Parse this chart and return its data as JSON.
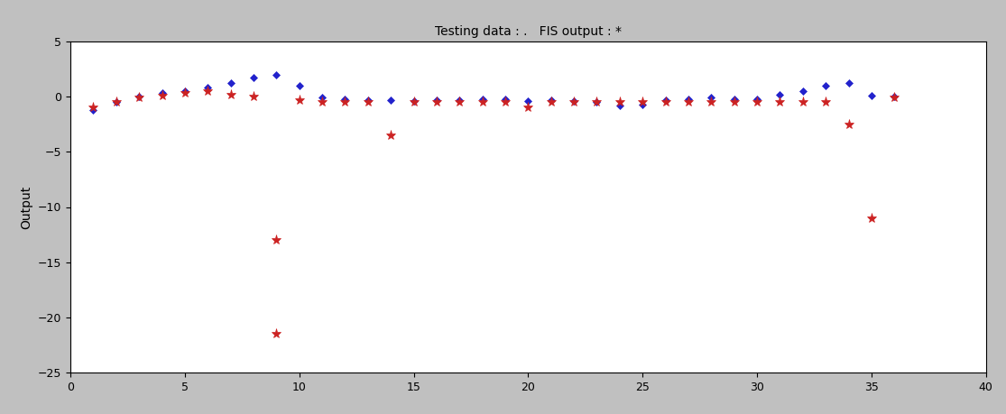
{
  "title": "Testing data : .   FIS output : *",
  "ylabel": "Output",
  "xlim": [
    0,
    40
  ],
  "ylim": [
    -25,
    5
  ],
  "yticks": [
    -25,
    -20,
    -15,
    -10,
    -5,
    0,
    5
  ],
  "xticks": [
    0,
    5,
    10,
    15,
    20,
    25,
    30,
    35,
    40
  ],
  "bg_color": "#c0c0c0",
  "plot_bg_color": "#ffffff",
  "blue_dot_color": "#2222cc",
  "red_star_color": "#cc2222",
  "blue_x": [
    1,
    2,
    3,
    4,
    5,
    6,
    7,
    8,
    9,
    10,
    11,
    12,
    13,
    14,
    15,
    16,
    17,
    18,
    19,
    20,
    21,
    22,
    23,
    24,
    25,
    26,
    27,
    28,
    29,
    30,
    31,
    32,
    33,
    34,
    35,
    36
  ],
  "blue_y": [
    -1.2,
    -0.5,
    0.0,
    0.3,
    0.5,
    0.8,
    1.2,
    1.7,
    2.0,
    1.0,
    -0.1,
    -0.2,
    -0.3,
    -0.3,
    -0.4,
    -0.3,
    -0.3,
    -0.2,
    -0.2,
    -0.4,
    -0.3,
    -0.4,
    -0.5,
    -0.8,
    -0.7,
    -0.3,
    -0.2,
    -0.1,
    -0.2,
    -0.2,
    0.2,
    0.5,
    1.0,
    1.2,
    0.1,
    0.0
  ],
  "red_x": [
    1,
    2,
    3,
    4,
    5,
    6,
    7,
    8,
    9,
    9,
    10,
    11,
    12,
    13,
    14,
    15,
    16,
    17,
    18,
    19,
    20,
    21,
    22,
    23,
    24,
    25,
    26,
    27,
    28,
    29,
    30,
    31,
    32,
    33,
    34,
    35,
    36
  ],
  "red_y": [
    -1.0,
    -0.5,
    -0.1,
    0.1,
    0.3,
    0.5,
    0.2,
    0.0,
    -13.0,
    -21.5,
    -0.3,
    -0.5,
    -0.5,
    -0.5,
    -3.5,
    -0.5,
    -0.5,
    -0.5,
    -0.5,
    -0.5,
    -1.0,
    -0.5,
    -0.5,
    -0.5,
    -0.5,
    -0.5,
    -0.5,
    -0.5,
    -0.5,
    -0.5,
    -0.5,
    -0.5,
    -0.5,
    -0.5,
    -2.5,
    -11.0,
    -0.1
  ],
  "title_fontsize": 10,
  "label_fontsize": 10,
  "tick_fontsize": 9
}
